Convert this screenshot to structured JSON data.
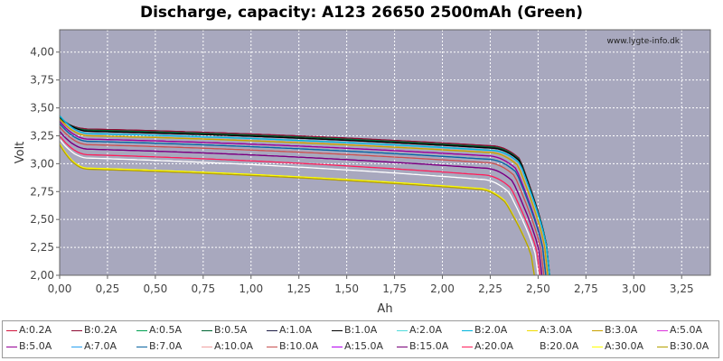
{
  "chart_data": {
    "type": "line",
    "title": "Discharge, capacity: A123 26650 2500mAh (Green)",
    "xlabel": "Ah",
    "ylabel": "Volt",
    "watermark": "www.lygte-info.dk",
    "xlim": [
      0,
      3.4
    ],
    "ylim": [
      2.0,
      4.2
    ],
    "xticks": [
      0,
      0.25,
      0.5,
      0.75,
      1.0,
      1.25,
      1.5,
      1.75,
      2.0,
      2.25,
      2.5,
      2.75,
      3.0,
      3.25
    ],
    "xtick_labels": [
      "0,00",
      "0,25",
      "0,50",
      "0,75",
      "1,00",
      "1,25",
      "1,50",
      "1,75",
      "2,00",
      "2,25",
      "2,50",
      "2,75",
      "3,00",
      "3,25"
    ],
    "yticks": [
      2.0,
      2.25,
      2.5,
      2.75,
      3.0,
      3.25,
      3.5,
      3.75,
      4.0
    ],
    "ytick_labels": [
      "2,00",
      "2,25",
      "2,50",
      "2,75",
      "3,00",
      "3,25",
      "3,50",
      "3,75",
      "4,00"
    ],
    "grid": true,
    "plot_background": "#a8a8be",
    "legend_position": "bottom",
    "series": [
      {
        "name": "A:0.2A",
        "color": "#d2143c",
        "v_start": 3.4,
        "v_plateau": 3.31,
        "v_knee": 3.16,
        "capacity": 2.56
      },
      {
        "name": "B:0.2A",
        "color": "#8c0a32",
        "v_start": 3.4,
        "v_plateau": 3.31,
        "v_knee": 3.16,
        "capacity": 2.56
      },
      {
        "name": "A:0.5A",
        "color": "#00a050",
        "v_start": 3.41,
        "v_plateau": 3.3,
        "v_knee": 3.15,
        "capacity": 2.56
      },
      {
        "name": "B:0.5A",
        "color": "#006432",
        "v_start": 3.41,
        "v_plateau": 3.3,
        "v_knee": 3.15,
        "capacity": 2.56
      },
      {
        "name": "A:1.0A",
        "color": "#1e1e46",
        "v_start": 3.42,
        "v_plateau": 3.29,
        "v_knee": 3.14,
        "capacity": 2.56
      },
      {
        "name": "B:1.0A",
        "color": "#000000",
        "v_start": 3.42,
        "v_plateau": 3.29,
        "v_knee": 3.14,
        "capacity": 2.56
      },
      {
        "name": "A:2.0A",
        "color": "#50dcdc",
        "v_start": 3.43,
        "v_plateau": 3.27,
        "v_knee": 3.12,
        "capacity": 2.56
      },
      {
        "name": "B:2.0A",
        "color": "#00b4dc",
        "v_start": 3.43,
        "v_plateau": 3.27,
        "v_knee": 3.12,
        "capacity": 2.56
      },
      {
        "name": "A:3.0A",
        "color": "#f0dc00",
        "v_start": 3.4,
        "v_plateau": 3.25,
        "v_knee": 3.1,
        "capacity": 2.55
      },
      {
        "name": "B:3.0A",
        "color": "#c8a000",
        "v_start": 3.4,
        "v_plateau": 3.25,
        "v_knee": 3.1,
        "capacity": 2.55
      },
      {
        "name": "A:5.0A",
        "color": "#dc32dc",
        "v_start": 3.38,
        "v_plateau": 3.22,
        "v_knee": 3.07,
        "capacity": 2.54
      },
      {
        "name": "B:5.0A",
        "color": "#960096",
        "v_start": 3.38,
        "v_plateau": 3.22,
        "v_knee": 3.07,
        "capacity": 2.54
      },
      {
        "name": "A:7.0A",
        "color": "#28a0f0",
        "v_start": 3.36,
        "v_plateau": 3.2,
        "v_knee": 3.04,
        "capacity": 2.54
      },
      {
        "name": "B:7.0A",
        "color": "#0a64a0",
        "v_start": 3.36,
        "v_plateau": 3.2,
        "v_knee": 3.04,
        "capacity": 2.54
      },
      {
        "name": "A:10.0A",
        "color": "#f0a0a0",
        "v_start": 3.33,
        "v_plateau": 3.17,
        "v_knee": 3.01,
        "capacity": 2.53
      },
      {
        "name": "B:10.0A",
        "color": "#c85050",
        "v_start": 3.33,
        "v_plateau": 3.17,
        "v_knee": 3.01,
        "capacity": 2.53
      },
      {
        "name": "A:15.0A",
        "color": "#b400f0",
        "v_start": 3.29,
        "v_plateau": 3.13,
        "v_knee": 2.96,
        "capacity": 2.52
      },
      {
        "name": "B:15.0A",
        "color": "#780078",
        "v_start": 3.29,
        "v_plateau": 3.13,
        "v_knee": 2.96,
        "capacity": 2.52
      },
      {
        "name": "A:20.0A",
        "color": "#ff1e5a",
        "v_start": 3.25,
        "v_plateau": 3.08,
        "v_knee": 2.9,
        "capacity": 2.51
      },
      {
        "name": "B:20.0A",
        "color": "#ffffff",
        "v_start": 3.22,
        "v_plateau": 3.05,
        "v_knee": 2.86,
        "capacity": 2.5
      },
      {
        "name": "A:30.0A",
        "color": "#ffff00",
        "v_start": 3.18,
        "v_plateau": 2.96,
        "v_knee": 2.78,
        "capacity": 2.48
      },
      {
        "name": "B:30.0A",
        "color": "#b4a000",
        "v_start": 3.17,
        "v_plateau": 2.95,
        "v_knee": 2.77,
        "capacity": 2.48
      }
    ]
  }
}
